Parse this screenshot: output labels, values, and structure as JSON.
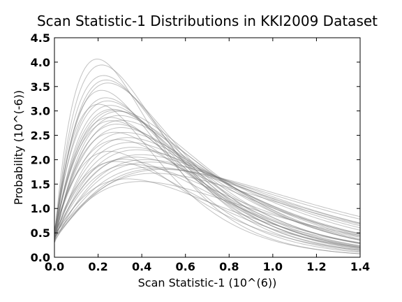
{
  "chart_data": {
    "type": "line",
    "title": "Scan Statistic-1 Distributions in KKI2009 Dataset",
    "xlabel": "Scan Statistic-1 (10^(6))",
    "ylabel": "Probability (10^(-6))",
    "xlim": [
      0.0,
      1.4
    ],
    "ylim": [
      0.0,
      4.5
    ],
    "xticks": [
      "0.0",
      "0.2",
      "0.4",
      "0.6",
      "0.8",
      "1.0",
      "1.2",
      "1.4"
    ],
    "yticks": [
      "0.0",
      "0.5",
      "1.0",
      "1.5",
      "2.0",
      "2.5",
      "3.0",
      "3.5",
      "4.0",
      "4.5"
    ],
    "grid": false,
    "line_color": "#777777",
    "series_shape": "each series: y(x) = p * (x/m) * exp(1 - x/m) + b * exp(-x/0.08); p = peak height, m = peak location, b = value near x=0 (all in data units)",
    "series": [
      {
        "peak_x": 0.2,
        "peak_y": 4.03,
        "start_y": 0.4
      },
      {
        "peak_x": 0.22,
        "peak_y": 3.92,
        "start_y": 0.35
      },
      {
        "peak_x": 0.23,
        "peak_y": 3.7,
        "start_y": 0.45
      },
      {
        "peak_x": 0.24,
        "peak_y": 3.62,
        "start_y": 0.3
      },
      {
        "peak_x": 0.25,
        "peak_y": 3.55,
        "start_y": 0.5
      },
      {
        "peak_x": 0.24,
        "peak_y": 3.25,
        "start_y": 0.4
      },
      {
        "peak_x": 0.25,
        "peak_y": 3.18,
        "start_y": 0.55
      },
      {
        "peak_x": 0.26,
        "peak_y": 3.1,
        "start_y": 0.35
      },
      {
        "peak_x": 0.27,
        "peak_y": 3.02,
        "start_y": 0.45
      },
      {
        "peak_x": 0.28,
        "peak_y": 3.0,
        "start_y": 0.4
      },
      {
        "peak_x": 0.3,
        "peak_y": 2.98,
        "start_y": 0.5
      },
      {
        "peak_x": 0.3,
        "peak_y": 2.9,
        "start_y": 0.3
      },
      {
        "peak_x": 0.26,
        "peak_y": 2.85,
        "start_y": 0.45
      },
      {
        "peak_x": 0.27,
        "peak_y": 2.78,
        "start_y": 0.55
      },
      {
        "peak_x": 0.29,
        "peak_y": 2.72,
        "start_y": 0.35
      },
      {
        "peak_x": 0.31,
        "peak_y": 2.65,
        "start_y": 0.4
      },
      {
        "peak_x": 0.33,
        "peak_y": 2.55,
        "start_y": 0.5
      },
      {
        "peak_x": 0.34,
        "peak_y": 2.45,
        "start_y": 0.3
      },
      {
        "peak_x": 0.35,
        "peak_y": 2.35,
        "start_y": 0.4
      },
      {
        "peak_x": 0.36,
        "peak_y": 2.25,
        "start_y": 0.45
      },
      {
        "peak_x": 0.38,
        "peak_y": 2.2,
        "start_y": 0.35
      },
      {
        "peak_x": 0.4,
        "peak_y": 2.1,
        "start_y": 0.5
      },
      {
        "peak_x": 0.37,
        "peak_y": 2.05,
        "start_y": 0.4
      },
      {
        "peak_x": 0.42,
        "peak_y": 2.0,
        "start_y": 0.3
      },
      {
        "peak_x": 0.44,
        "peak_y": 1.95,
        "start_y": 0.45
      },
      {
        "peak_x": 0.45,
        "peak_y": 1.85,
        "start_y": 0.4
      },
      {
        "peak_x": 0.48,
        "peak_y": 1.82,
        "start_y": 0.35
      },
      {
        "peak_x": 0.5,
        "peak_y": 1.8,
        "start_y": 0.4
      },
      {
        "peak_x": 0.46,
        "peak_y": 1.72,
        "start_y": 0.5
      },
      {
        "peak_x": 0.3,
        "peak_y": 2.4,
        "start_y": 0.55
      },
      {
        "peak_x": 0.32,
        "peak_y": 2.0,
        "start_y": 0.45
      },
      {
        "peak_x": 0.28,
        "peak_y": 2.55,
        "start_y": 0.4
      },
      {
        "peak_x": 0.22,
        "peak_y": 3.4,
        "start_y": 0.35
      },
      {
        "peak_x": 0.21,
        "peak_y": 3.1,
        "start_y": 0.5
      },
      {
        "peak_x": 0.34,
        "peak_y": 1.6,
        "start_y": 0.45
      },
      {
        "peak_x": 0.4,
        "peak_y": 1.55,
        "start_y": 0.4
      },
      {
        "peak_x": 0.26,
        "peak_y": 2.15,
        "start_y": 0.55
      },
      {
        "peak_x": 0.29,
        "peak_y": 1.95,
        "start_y": 0.5
      },
      {
        "peak_x": 0.31,
        "peak_y": 2.8,
        "start_y": 0.35
      },
      {
        "peak_x": 0.36,
        "peak_y": 1.9,
        "start_y": 0.4
      }
    ]
  }
}
